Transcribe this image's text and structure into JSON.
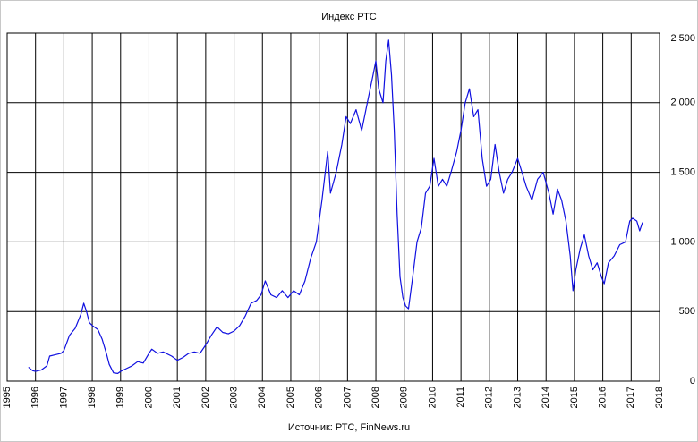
{
  "chart_data": {
    "type": "line",
    "title": "Индекс РТС",
    "subtitle": "Источник: РТС, FinNews.ru",
    "color": "#1010e0",
    "grid": true,
    "xlim": [
      1995,
      2018
    ],
    "xticks": [
      1995,
      1996,
      1997,
      1998,
      1999,
      2000,
      2001,
      2002,
      2003,
      2004,
      2005,
      2006,
      2007,
      2008,
      2009,
      2010,
      2011,
      2012,
      2013,
      2014,
      2015,
      2016,
      2017,
      2018
    ],
    "ylim": [
      0,
      2500
    ],
    "yticks": [
      0,
      500,
      {
        "value": 1000,
        "label": "1 000"
      },
      {
        "value": 1500,
        "label": "1 500"
      },
      {
        "value": 2000,
        "label": "2 000"
      },
      {
        "value": 2500,
        "label": "2 500"
      }
    ],
    "x": [
      1995.75,
      1995.9,
      1996.0,
      1996.2,
      1996.4,
      1996.5,
      1996.7,
      1996.9,
      1997.0,
      1997.2,
      1997.4,
      1997.6,
      1997.7,
      1997.8,
      1997.9,
      1998.0,
      1998.2,
      1998.35,
      1998.5,
      1998.6,
      1998.75,
      1998.9,
      1999.0,
      1999.2,
      1999.4,
      1999.6,
      1999.8,
      2000.0,
      2000.1,
      2000.3,
      2000.5,
      2000.8,
      2001.0,
      2001.2,
      2001.4,
      2001.6,
      2001.8,
      2002.0,
      2002.2,
      2002.4,
      2002.6,
      2002.8,
      2003.0,
      2003.2,
      2003.4,
      2003.6,
      2003.8,
      2003.95,
      2004.1,
      2004.3,
      2004.5,
      2004.7,
      2004.9,
      2005.1,
      2005.3,
      2005.5,
      2005.7,
      2005.9,
      2006.1,
      2006.3,
      2006.4,
      2006.6,
      2006.8,
      2006.95,
      2007.1,
      2007.3,
      2007.5,
      2007.7,
      2007.9,
      2008.0,
      2008.1,
      2008.25,
      2008.35,
      2008.45,
      2008.55,
      2008.65,
      2008.75,
      2008.85,
      2008.95,
      2009.05,
      2009.15,
      2009.3,
      2009.45,
      2009.6,
      2009.75,
      2009.9,
      2010.05,
      2010.2,
      2010.35,
      2010.5,
      2010.65,
      2010.85,
      2011.0,
      2011.15,
      2011.3,
      2011.45,
      2011.6,
      2011.75,
      2011.9,
      2012.05,
      2012.2,
      2012.35,
      2012.5,
      2012.65,
      2012.8,
      2013.0,
      2013.15,
      2013.3,
      2013.5,
      2013.7,
      2013.9,
      2014.1,
      2014.25,
      2014.4,
      2014.55,
      2014.7,
      2014.85,
      2014.95,
      2015.05,
      2015.2,
      2015.35,
      2015.5,
      2015.65,
      2015.8,
      2015.95,
      2016.05,
      2016.2,
      2016.4,
      2016.6,
      2016.8,
      2016.95,
      2017.05,
      2017.2,
      2017.3,
      2017.4
    ],
    "values": [
      100,
      75,
      70,
      80,
      110,
      180,
      190,
      200,
      220,
      330,
      380,
      480,
      560,
      500,
      420,
      400,
      370,
      300,
      200,
      120,
      60,
      55,
      70,
      90,
      110,
      140,
      130,
      200,
      230,
      200,
      210,
      180,
      150,
      170,
      200,
      210,
      200,
      260,
      330,
      390,
      350,
      340,
      360,
      400,
      470,
      560,
      580,
      620,
      720,
      620,
      600,
      650,
      600,
      650,
      620,
      720,
      880,
      1000,
      1300,
      1650,
      1350,
      1500,
      1700,
      1900,
      1850,
      1950,
      1800,
      2000,
      2200,
      2300,
      2100,
      2000,
      2300,
      2450,
      2200,
      1800,
      1200,
      750,
      600,
      540,
      520,
      750,
      1000,
      1100,
      1350,
      1400,
      1600,
      1400,
      1450,
      1400,
      1500,
      1650,
      1800,
      2000,
      2100,
      1900,
      1950,
      1600,
      1400,
      1450,
      1700,
      1500,
      1350,
      1450,
      1500,
      1600,
      1500,
      1400,
      1300,
      1450,
      1500,
      1350,
      1200,
      1380,
      1300,
      1150,
      900,
      650,
      800,
      950,
      1050,
      900,
      800,
      850,
      750,
      700,
      850,
      900,
      980,
      1000,
      1150,
      1170,
      1150,
      1080,
      1140
    ]
  }
}
